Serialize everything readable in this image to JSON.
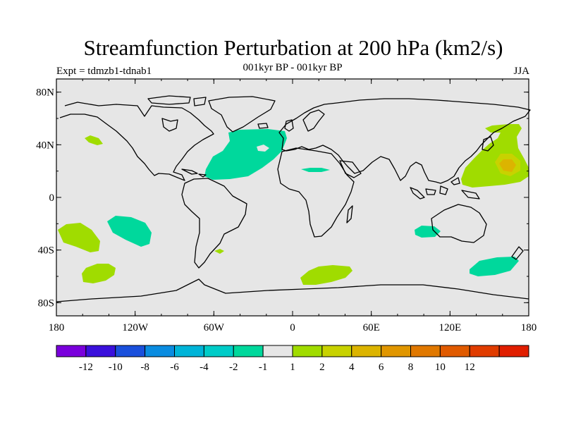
{
  "chart_data": {
    "type": "heatmap",
    "title": "Streamfunction Perturbation at 200 hPa (km2/s)",
    "subtitle": "001kyr BP - 001kyr BP",
    "left_label": "Expt = tdmzb1-tdnab1",
    "right_label": "JJA",
    "x_axis": {
      "range": [
        -180,
        180
      ],
      "tick_values": [
        -180,
        -120,
        -60,
        0,
        60,
        120,
        180
      ],
      "tick_labels": [
        "180",
        "120W",
        "60W",
        "0",
        "60E",
        "120E",
        "180"
      ]
    },
    "y_axis": {
      "range": [
        -90,
        90
      ],
      "tick_values": [
        80,
        40,
        0,
        -40,
        -80
      ],
      "tick_labels": [
        "80N",
        "40N",
        "0",
        "40S",
        "80S"
      ]
    },
    "colorbar": {
      "colors": [
        "#7a00dc",
        "#3a10dc",
        "#1a50dc",
        "#0a8ce0",
        "#00b4d8",
        "#00ccc8",
        "#00d89c",
        "#e6e6e6",
        "#a0dc00",
        "#c8d200",
        "#dcb400",
        "#e09600",
        "#e07800",
        "#e05a00",
        "#e03c00",
        "#e01e00"
      ],
      "labels": [
        "-12",
        "-10",
        "-8",
        "-6",
        "-4",
        "-2",
        "-1",
        "1",
        "2",
        "4",
        "6",
        "8",
        "10",
        "12"
      ]
    },
    "anomalies": [
      {
        "name": "north-atlantic",
        "sign": "negative",
        "level": "-2 to -1",
        "lon": -35,
        "lat": 33
      },
      {
        "name": "north-africa",
        "sign": "negative",
        "level": "-2 to -1",
        "lon": 18,
        "lat": 21
      },
      {
        "name": "south-pacific-east",
        "sign": "negative",
        "level": "-2 to -1",
        "lon": -130,
        "lat": -25
      },
      {
        "name": "indian-ocean",
        "sign": "negative",
        "level": "-2 to -1",
        "lon": 100,
        "lat": -25
      },
      {
        "name": "south-pacific-west",
        "sign": "negative",
        "level": "-2 to -1",
        "lon": 155,
        "lat": -52
      },
      {
        "name": "northwest-pacific",
        "sign": "positive",
        "level": "1 to 4",
        "lon": 158,
        "lat": 26
      },
      {
        "name": "north-pacific",
        "sign": "positive",
        "level": "1 to 2",
        "lon": -155,
        "lat": 44
      },
      {
        "name": "south-pacific-far-east",
        "sign": "positive",
        "level": "1 to 2",
        "lon": -165,
        "lat": -30
      },
      {
        "name": "southern-ocean-pacific",
        "sign": "positive",
        "level": "1 to 2",
        "lon": -145,
        "lat": -60
      },
      {
        "name": "southern-ocean-atlantic",
        "sign": "positive",
        "level": "1 to 2",
        "lon": 25,
        "lat": -60
      },
      {
        "name": "south-america-coast",
        "sign": "positive",
        "level": "1 to 2",
        "lon": -58,
        "lat": -40
      }
    ]
  }
}
